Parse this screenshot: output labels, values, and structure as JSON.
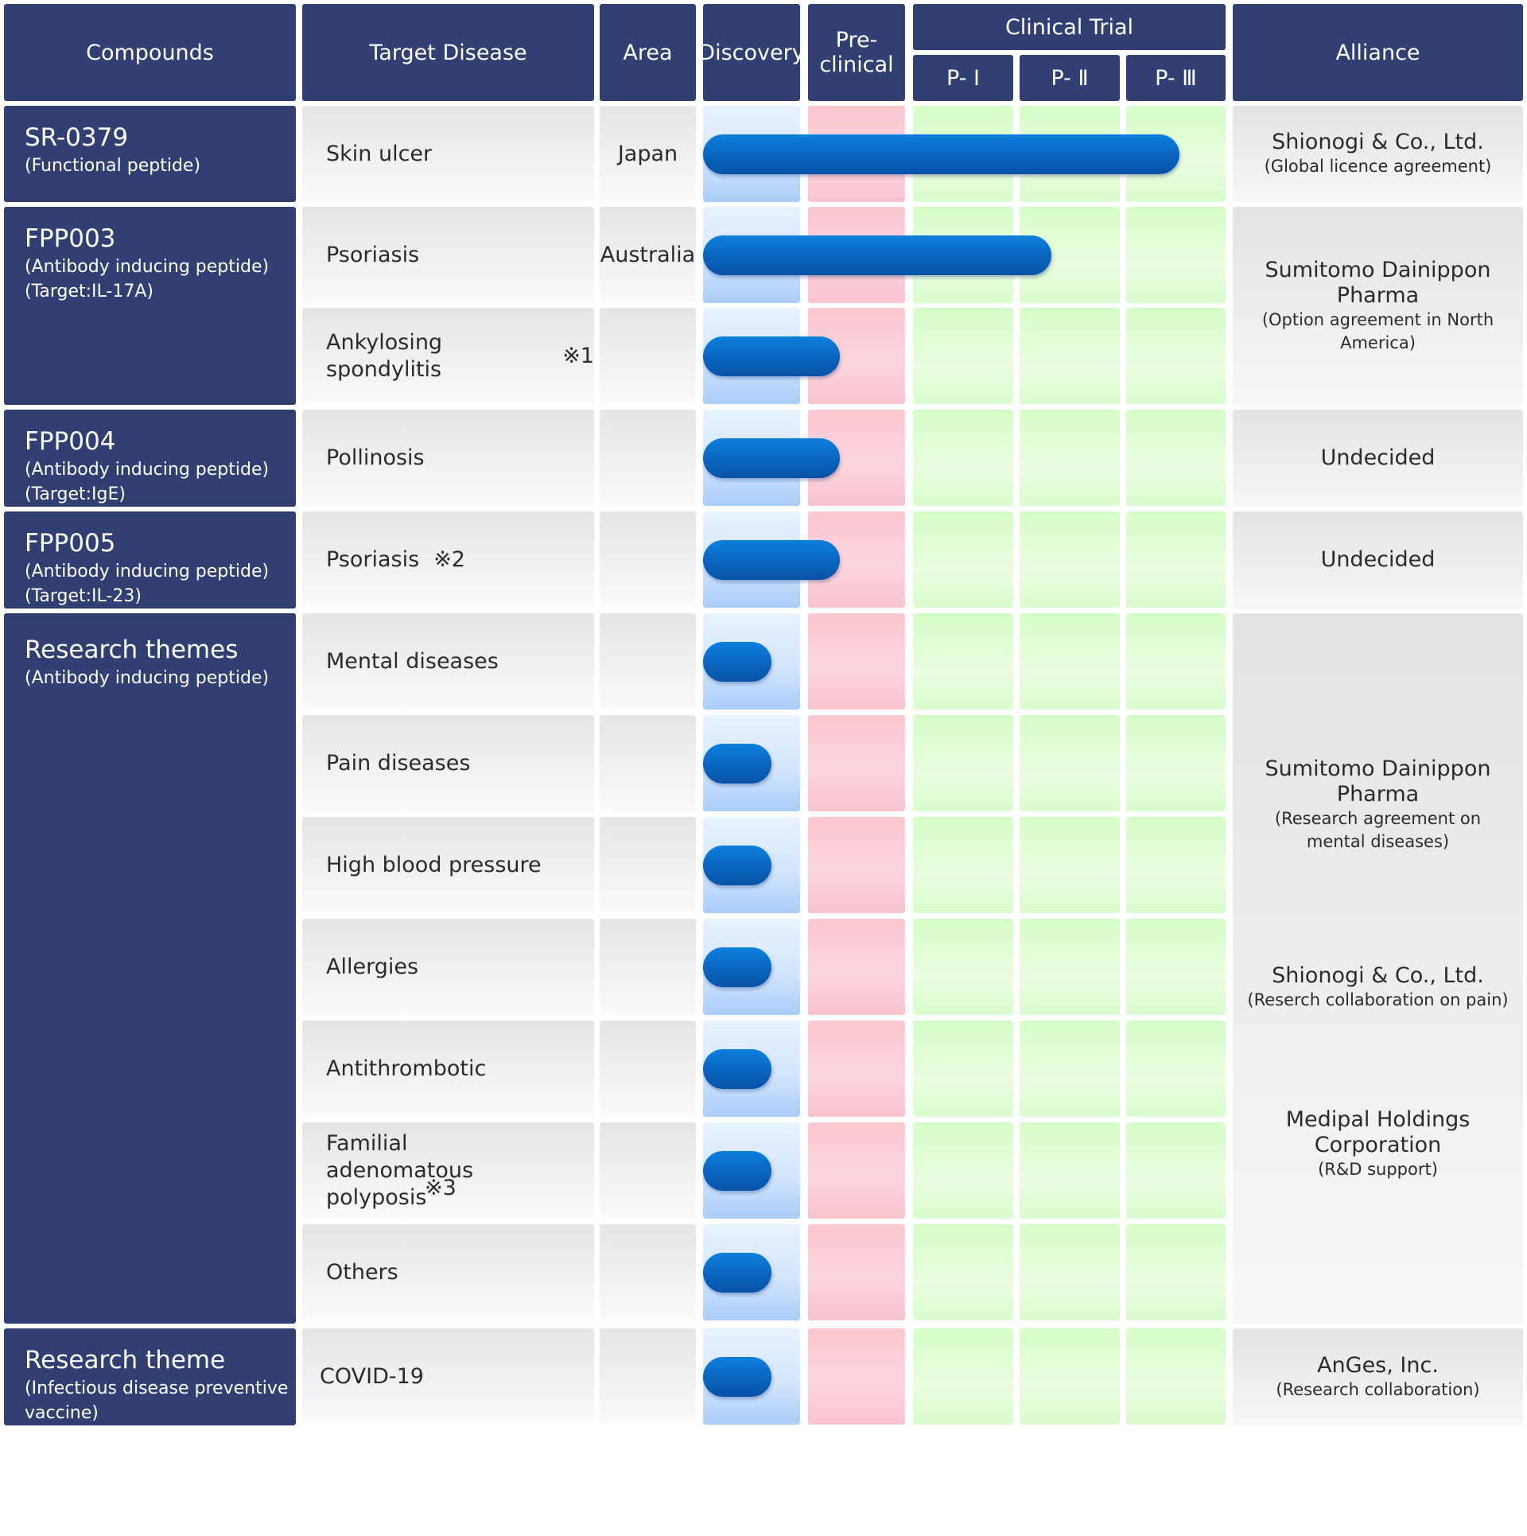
{
  "columns": {
    "compounds": "Compounds",
    "target_disease": "Target Disease",
    "area": "Area",
    "discovery": "Discovery",
    "preclinical": "Pre-clinical",
    "clinical_trial": "Clinical Trial",
    "p1": "P- Ⅰ",
    "p2": "P- Ⅱ",
    "p3": "P- Ⅲ",
    "alliance": "Alliance"
  },
  "compounds": [
    {
      "name": "SR-0379",
      "details": [
        "(Functional peptide)"
      ]
    },
    {
      "name": "FPP003",
      "details": [
        "(Antibody inducing peptide)",
        "(Target:IL-17A)"
      ]
    },
    {
      "name": "FPP004",
      "details": [
        "(Antibody inducing peptide)",
        "(Target:IgE)"
      ]
    },
    {
      "name": "FPP005",
      "details": [
        "(Antibody inducing peptide)",
        "(Target:IL-23)"
      ]
    },
    {
      "name": "Research themes",
      "details": [
        "(Antibody inducing peptide)"
      ]
    },
    {
      "name": "Research theme",
      "details": [
        "(Infectious disease preventive",
        "vaccine)"
      ]
    }
  ],
  "alliances": [
    {
      "name": "Shionogi & Co., Ltd.",
      "note": "(Global licence agreement)"
    },
    {
      "name": "Sumitomo Dainippon Pharma",
      "note": "(Option agreement in North America)"
    },
    {
      "name": "Undecided",
      "note": ""
    },
    {
      "name": "Undecided",
      "note": ""
    },
    {
      "name": "Sumitomo Dainippon Pharma",
      "note": "(Research agreement on mental diseases)",
      "name2": "Shionogi & Co., Ltd.",
      "note2": "(Reserch collaboration on pain)",
      "name3": "Medipal Holdings Corporation",
      "note3": "(R&D support)"
    },
    {
      "name": "AnGes, Inc.",
      "note": "(Research collaboration)"
    }
  ],
  "chart_data": {
    "type": "bar",
    "title": "",
    "orientation": "horizontal",
    "stages": [
      "Discovery",
      "Pre-clinical",
      "P- Ⅰ",
      "P- Ⅱ",
      "P- Ⅲ"
    ],
    "xlim": [
      0,
      5
    ],
    "rows": [
      {
        "compound": "SR-0379",
        "disease": "Skin ulcer",
        "note": "",
        "area": "Japan",
        "progress": 4.5
      },
      {
        "compound": "FPP003",
        "disease": "Psoriasis",
        "note": "",
        "area": "Australia",
        "progress": 3.3
      },
      {
        "compound": "FPP003",
        "disease": "Ankylosing spondylitis",
        "note": "※1",
        "area": "",
        "progress": 1.3
      },
      {
        "compound": "FPP004",
        "disease": "Pollinosis",
        "note": "",
        "area": "",
        "progress": 1.3
      },
      {
        "compound": "FPP005",
        "disease": "Psoriasis",
        "note": "※2",
        "area": "",
        "progress": 1.3
      },
      {
        "compound": "Research themes",
        "disease": "Mental diseases",
        "note": "",
        "area": "",
        "progress": 0.65
      },
      {
        "compound": "Research themes",
        "disease": "Pain diseases",
        "note": "",
        "area": "",
        "progress": 0.65
      },
      {
        "compound": "Research themes",
        "disease": "High blood pressure",
        "note": "",
        "area": "",
        "progress": 0.65
      },
      {
        "compound": "Research themes",
        "disease": "Allergies",
        "note": "",
        "area": "",
        "progress": 0.65
      },
      {
        "compound": "Research themes",
        "disease": "Antithrombotic",
        "note": "",
        "area": "",
        "progress": 0.65
      },
      {
        "compound": "Research themes",
        "disease": "Familial adenomatous polyposis",
        "note": "※3",
        "area": "",
        "progress": 0.65
      },
      {
        "compound": "Research themes",
        "disease": "Others",
        "note": "",
        "area": "",
        "progress": 0.65
      },
      {
        "compound": "Research theme",
        "disease": "COVID-19",
        "note": "",
        "area": "",
        "progress": 0.65
      }
    ]
  }
}
